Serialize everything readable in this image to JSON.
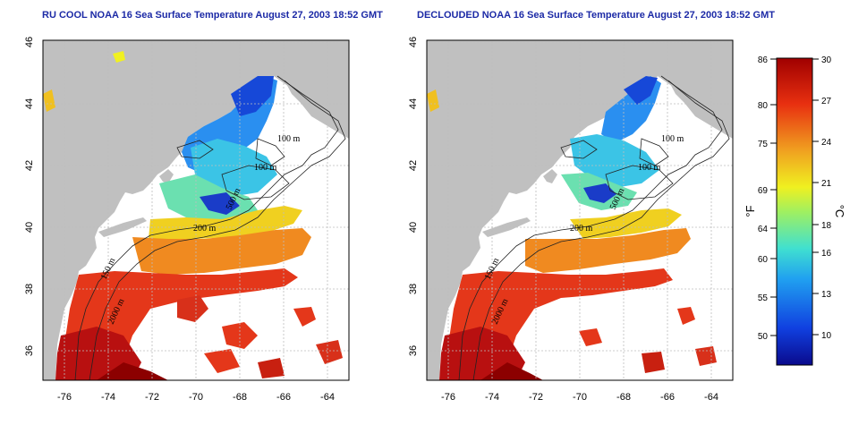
{
  "panels": [
    {
      "id": "left",
      "title": "RU COOL NOAA 16 Sea Surface Temperature August 27, 2003 18:52 GMT",
      "clouds": "present"
    },
    {
      "id": "right",
      "title": "DECLOUDED NOAA 16 Sea Surface Temperature August 27, 2003 18:52 GMT",
      "clouds": "removed"
    }
  ],
  "axes": {
    "x_ticks": [
      "-76",
      "-74",
      "-72",
      "-70",
      "-68",
      "-66",
      "-64"
    ],
    "y_ticks": [
      "46",
      "44",
      "42",
      "40",
      "38",
      "36"
    ],
    "lon_range": [
      -77.0,
      -63.0
    ],
    "lat_range": [
      35.0,
      46.0
    ]
  },
  "contour_labels": {
    "m100_a": "100 m",
    "m100_b": "100 m",
    "m200": "200 m",
    "m500": "500 m",
    "m2000": "2000 m",
    "m150": "150 m"
  },
  "colorbar": {
    "fahrenheit_unit": "°F",
    "celsius_unit": "°C",
    "fahrenheit_ticks": [
      "86",
      "80",
      "75",
      "69",
      "64",
      "60",
      "55",
      "50"
    ],
    "celsius_ticks": [
      "30",
      "27",
      "24",
      "21",
      "18",
      "16",
      "13",
      "10"
    ],
    "range_c": [
      8,
      30
    ],
    "colors": [
      "#0a0a8c",
      "#1040e0",
      "#20a0f0",
      "#40e0d0",
      "#a0f060",
      "#f0f020",
      "#f0a020",
      "#e83010",
      "#a00000"
    ]
  },
  "colors": {
    "land": "#c0c0c0",
    "title": "#1c2aa6",
    "grid": "#bdbdbd"
  }
}
